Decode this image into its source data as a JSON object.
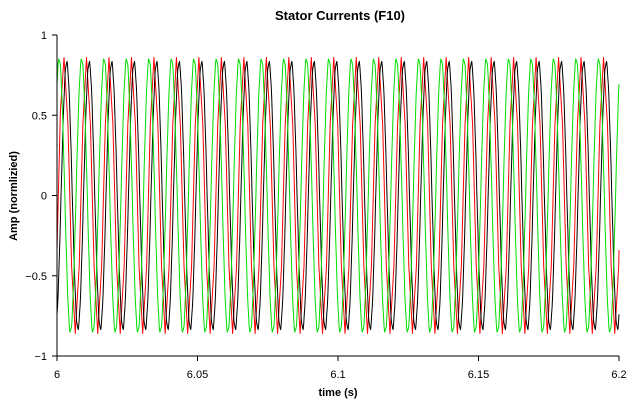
{
  "chart_data": {
    "type": "line",
    "title": "Stator Currents (F10)",
    "xlabel": "time (s)",
    "ylabel": "Amp (normlizied)",
    "xlim": [
      6,
      6.2
    ],
    "ylim": [
      -1,
      1
    ],
    "x_ticks": [
      6,
      6.05,
      6.1,
      6.15,
      6.2
    ],
    "x_tick_labels": [
      "6",
      "6.05",
      "6.1",
      "6.15",
      "6.2"
    ],
    "y_ticks": [
      -1,
      -0.5,
      0,
      0.5,
      1
    ],
    "y_tick_labels": [
      "−1",
      "−0.5",
      "0",
      "0.5",
      "1"
    ],
    "grid": false,
    "legend": "none",
    "frequency_hz": 125,
    "sample_step_s": 0.0002,
    "series": [
      {
        "color": "#ff0000",
        "amplitude": 0.86,
        "phase_deg": 175,
        "pts": [
          [
            6.0,
            -0.34
          ],
          [
            6.0012,
            0.52
          ],
          [
            6.0025,
            0.86
          ],
          [
            6.0039,
            0.44
          ],
          [
            6.0052,
            -0.44
          ],
          [
            6.0065,
            -0.86
          ],
          [
            6.0079,
            -0.44
          ],
          [
            6.0092,
            0.44
          ],
          [
            6.0105,
            0.86
          ],
          [
            6.0119,
            0.44
          ],
          [
            6.0132,
            -0.44
          ],
          [
            6.0145,
            -0.86
          ],
          [
            6.0159,
            -0.44
          ],
          [
            6.0172,
            0.44
          ],
          [
            6.0185,
            0.86
          ],
          [
            6.0199,
            0.44
          ],
          [
            6.0212,
            -0.44
          ],
          [
            6.0225,
            -0.86
          ],
          [
            6.0239,
            -0.44
          ],
          [
            6.0252,
            0.44
          ],
          [
            6.0265,
            0.86
          ],
          [
            6.0279,
            0.44
          ],
          [
            6.0292,
            -0.44
          ],
          [
            6.0305,
            -0.86
          ],
          [
            6.0319,
            -0.44
          ],
          [
            6.0332,
            0.44
          ],
          [
            6.0345,
            0.86
          ],
          [
            6.0359,
            0.44
          ],
          [
            6.0372,
            -0.44
          ],
          [
            6.0385,
            -0.86
          ],
          [
            6.0399,
            -0.44
          ],
          [
            6.0412,
            0.44
          ],
          [
            6.0425,
            0.86
          ],
          [
            6.0439,
            0.44
          ],
          [
            6.0452,
            -0.44
          ],
          [
            6.0465,
            -0.86
          ],
          [
            6.0479,
            -0.44
          ],
          [
            6.0492,
            0.44
          ],
          [
            6.0505,
            0.86
          ],
          [
            6.0519,
            0.44
          ],
          [
            6.0532,
            -0.44
          ],
          [
            6.0545,
            -0.86
          ],
          [
            6.0559,
            -0.44
          ],
          [
            6.0572,
            0.44
          ],
          [
            6.0585,
            0.86
          ],
          [
            6.0599,
            0.44
          ],
          [
            6.0612,
            -0.44
          ],
          [
            6.0625,
            -0.86
          ],
          [
            6.0639,
            -0.44
          ],
          [
            6.0652,
            0.44
          ],
          [
            6.0665,
            0.86
          ],
          [
            6.0679,
            0.44
          ],
          [
            6.0692,
            -0.44
          ],
          [
            6.0705,
            -0.86
          ],
          [
            6.0719,
            -0.44
          ],
          [
            6.0732,
            0.44
          ],
          [
            6.0745,
            0.86
          ],
          [
            6.0759,
            0.44
          ],
          [
            6.0772,
            -0.44
          ],
          [
            6.0785,
            -0.86
          ],
          [
            6.0799,
            -0.44
          ],
          [
            6.0812,
            0.44
          ],
          [
            6.0825,
            0.86
          ],
          [
            6.0839,
            0.44
          ],
          [
            6.0852,
            -0.44
          ],
          [
            6.0865,
            -0.86
          ],
          [
            6.0879,
            -0.44
          ],
          [
            6.0892,
            0.44
          ],
          [
            6.0905,
            0.86
          ],
          [
            6.0919,
            0.44
          ],
          [
            6.0932,
            -0.44
          ],
          [
            6.0945,
            -0.86
          ],
          [
            6.0959,
            -0.44
          ],
          [
            6.0972,
            0.44
          ],
          [
            6.0985,
            0.86
          ],
          [
            6.0999,
            0.44
          ],
          [
            6.1012,
            -0.44
          ],
          [
            6.1025,
            -0.86
          ],
          [
            6.1039,
            -0.44
          ],
          [
            6.1052,
            0.44
          ],
          [
            6.1065,
            0.86
          ],
          [
            6.1079,
            0.44
          ],
          [
            6.1092,
            -0.44
          ],
          [
            6.1105,
            -0.86
          ],
          [
            6.1119,
            -0.44
          ],
          [
            6.1132,
            0.44
          ],
          [
            6.1145,
            0.86
          ],
          [
            6.1159,
            0.44
          ],
          [
            6.1172,
            -0.44
          ],
          [
            6.1185,
            -0.86
          ],
          [
            6.1199,
            -0.44
          ],
          [
            6.1212,
            0.44
          ],
          [
            6.1225,
            0.86
          ],
          [
            6.1239,
            0.44
          ],
          [
            6.1252,
            -0.44
          ],
          [
            6.1265,
            -0.86
          ],
          [
            6.1279,
            -0.44
          ],
          [
            6.1292,
            0.44
          ],
          [
            6.1305,
            0.86
          ],
          [
            6.1319,
            0.44
          ],
          [
            6.1332,
            -0.44
          ],
          [
            6.1345,
            -0.86
          ],
          [
            6.1359,
            -0.44
          ],
          [
            6.1372,
            0.44
          ],
          [
            6.1385,
            0.86
          ],
          [
            6.1399,
            0.44
          ],
          [
            6.1412,
            -0.44
          ],
          [
            6.1425,
            -0.86
          ],
          [
            6.1439,
            -0.44
          ],
          [
            6.1452,
            0.44
          ],
          [
            6.1465,
            0.86
          ],
          [
            6.1479,
            0.44
          ],
          [
            6.1492,
            -0.44
          ],
          [
            6.1505,
            -0.86
          ],
          [
            6.1519,
            -0.44
          ],
          [
            6.1532,
            0.44
          ],
          [
            6.1545,
            0.86
          ],
          [
            6.1559,
            0.44
          ],
          [
            6.1572,
            -0.44
          ],
          [
            6.1585,
            -0.86
          ],
          [
            6.1599,
            -0.44
          ],
          [
            6.1612,
            0.44
          ],
          [
            6.1625,
            0.86
          ],
          [
            6.1639,
            0.44
          ],
          [
            6.1652,
            -0.44
          ],
          [
            6.1665,
            -0.86
          ],
          [
            6.1679,
            -0.44
          ],
          [
            6.1692,
            0.44
          ],
          [
            6.1705,
            0.86
          ],
          [
            6.1719,
            0.44
          ],
          [
            6.1732,
            -0.44
          ],
          [
            6.1745,
            -0.86
          ],
          [
            6.1759,
            -0.44
          ],
          [
            6.1772,
            0.44
          ],
          [
            6.1785,
            0.86
          ],
          [
            6.1799,
            0.44
          ],
          [
            6.1812,
            -0.44
          ],
          [
            6.1825,
            -0.86
          ],
          [
            6.1839,
            -0.44
          ],
          [
            6.1852,
            0.44
          ],
          [
            6.1865,
            0.86
          ],
          [
            6.1879,
            0.44
          ],
          [
            6.1892,
            -0.44
          ],
          [
            6.1905,
            -0.86
          ],
          [
            6.1919,
            -0.44
          ],
          [
            6.1932,
            0.44
          ],
          [
            6.1945,
            0.86
          ],
          [
            6.1959,
            0.44
          ],
          [
            6.1972,
            -0.44
          ],
          [
            6.1985,
            -0.86
          ],
          [
            6.1999,
            -0.44
          ],
          [
            6.2,
            -0.34
          ]
        ]
      },
      {
        "color": "#000000",
        "amplitude": 0.83,
        "phase_deg": 295
      },
      {
        "color": "#00dd00",
        "amplitude": 0.85,
        "phase_deg": 55
      }
    ]
  }
}
